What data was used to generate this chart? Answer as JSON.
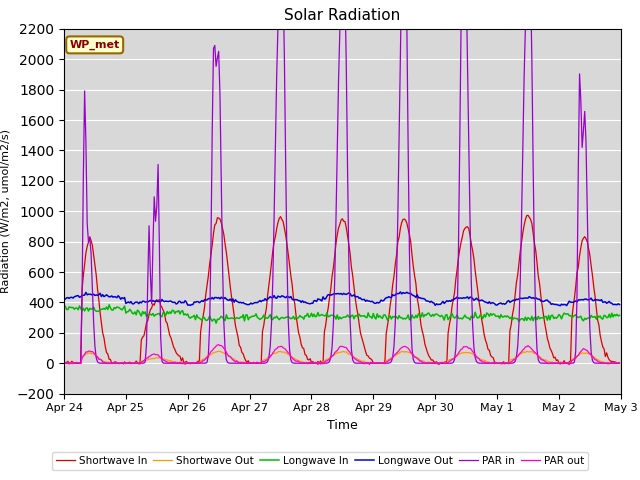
{
  "title": "Solar Radiation",
  "ylabel": "Radiation (W/m2, umol/m2/s)",
  "xlabel": "Time",
  "ylim": [
    -200,
    2200
  ],
  "yticks": [
    -200,
    0,
    200,
    400,
    600,
    800,
    1000,
    1200,
    1400,
    1600,
    1800,
    2000,
    2200
  ],
  "bg_color": "#d8d8d8",
  "annotation": "WP_met",
  "annotation_bg": "#ffffcc",
  "annotation_border": "#996600",
  "series_colors": {
    "sw_in": "#dd0000",
    "sw_out": "#ff9900",
    "lw_in": "#00bb00",
    "lw_out": "#0000dd",
    "par_in": "#9900cc",
    "par_out": "#ff00cc"
  },
  "series_labels": {
    "sw_in": "Shortwave In",
    "sw_out": "Shortwave Out",
    "lw_in": "Longwave In",
    "lw_out": "Longwave Out",
    "par_in": "PAR in",
    "par_out": "PAR out"
  },
  "xtick_labels": [
    "Apr 24",
    "Apr 25",
    "Apr 26",
    "Apr 27",
    "Apr 28",
    "Apr 29",
    "Apr 30",
    "May 1",
    "May 2",
    "May 3"
  ],
  "xtick_positions": [
    0,
    48,
    96,
    144,
    192,
    240,
    288,
    336,
    384,
    432
  ]
}
